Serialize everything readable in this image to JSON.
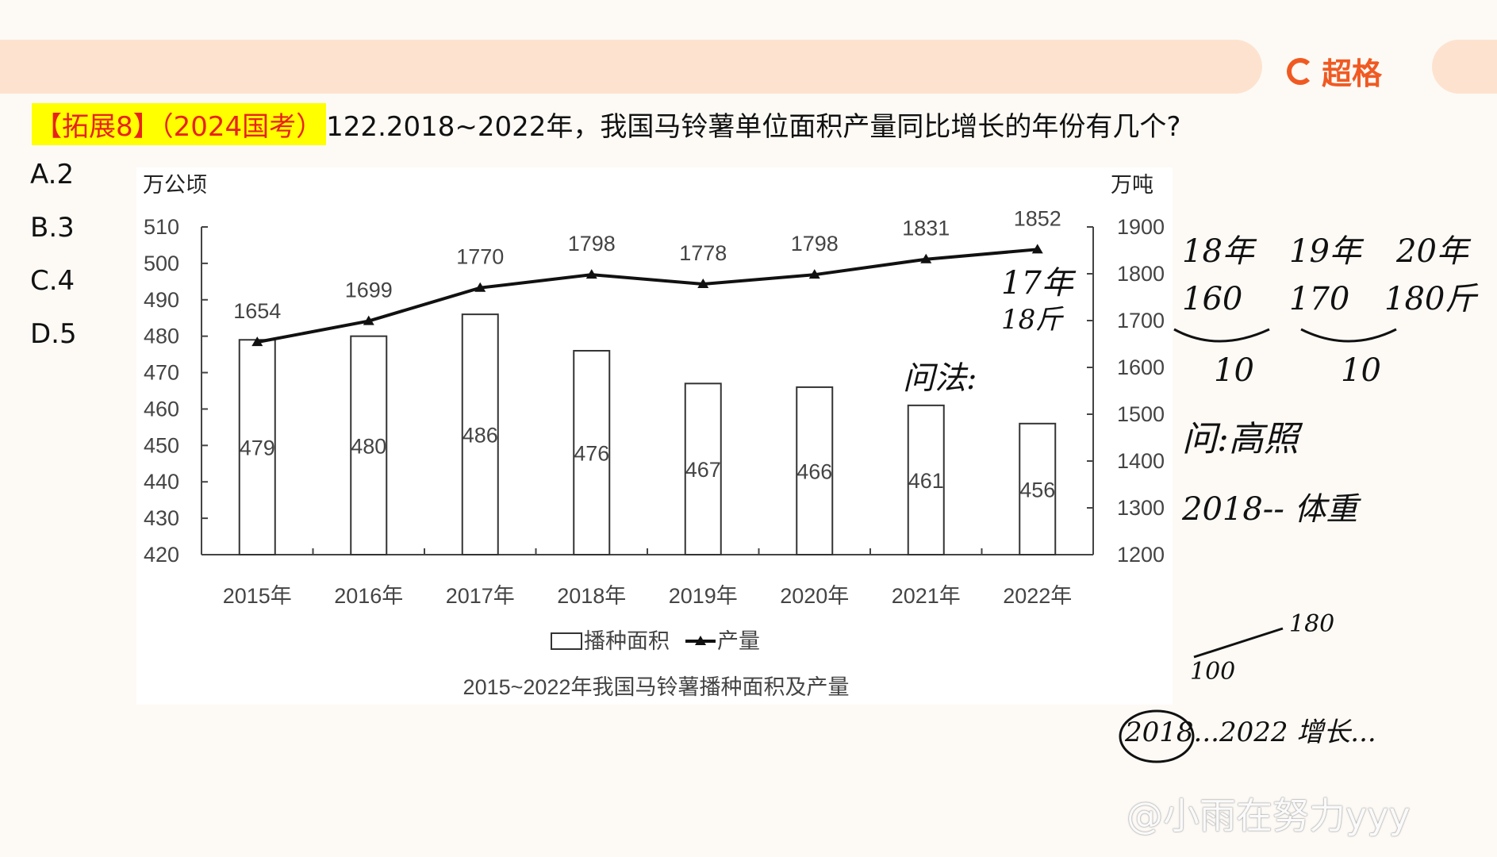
{
  "header": {
    "logo_text": "超格",
    "brand_color": "#f05a22"
  },
  "question": {
    "tag": "【拓展8】（2024国考）",
    "text": "122.2018~2022年，我国马铃薯单位面积产量同比增长的年份有几个?"
  },
  "options": [
    "A.2",
    "B.3",
    "C.4",
    "D.5"
  ],
  "chart_data": {
    "type": "bar+line",
    "title": "2015~2022年我国马铃薯播种面积及产量",
    "categories": [
      "2015年",
      "2016年",
      "2017年",
      "2018年",
      "2019年",
      "2020年",
      "2021年",
      "2022年"
    ],
    "left_axis": {
      "label": "万公顷",
      "ylim": [
        420,
        510
      ],
      "ticks": [
        420,
        430,
        440,
        450,
        460,
        470,
        480,
        490,
        500,
        510
      ]
    },
    "right_axis": {
      "label": "万吨",
      "ylim": [
        1200,
        1900
      ],
      "ticks": [
        1200,
        1300,
        1400,
        1500,
        1600,
        1700,
        1800,
        1900
      ]
    },
    "series": [
      {
        "name": "播种面积",
        "type": "bar",
        "axis": "left",
        "values": [
          479,
          480,
          486,
          476,
          467,
          466,
          461,
          456
        ]
      },
      {
        "name": "产量",
        "type": "line",
        "axis": "right",
        "values": [
          1654,
          1699,
          1770,
          1798,
          1778,
          1798,
          1831,
          1852
        ]
      }
    ],
    "legend_position": "bottom",
    "grid": false
  },
  "annotations": [
    "17年",
    "18斤",
    "18年",
    "160",
    "19年",
    "170",
    "20年",
    "180斤",
    "10",
    "10",
    "问法:",
    "问:高照",
    "2018-- 体重",
    "100",
    "180",
    "2018...2022 增长..."
  ],
  "watermark": "@小雨在努力yyy"
}
